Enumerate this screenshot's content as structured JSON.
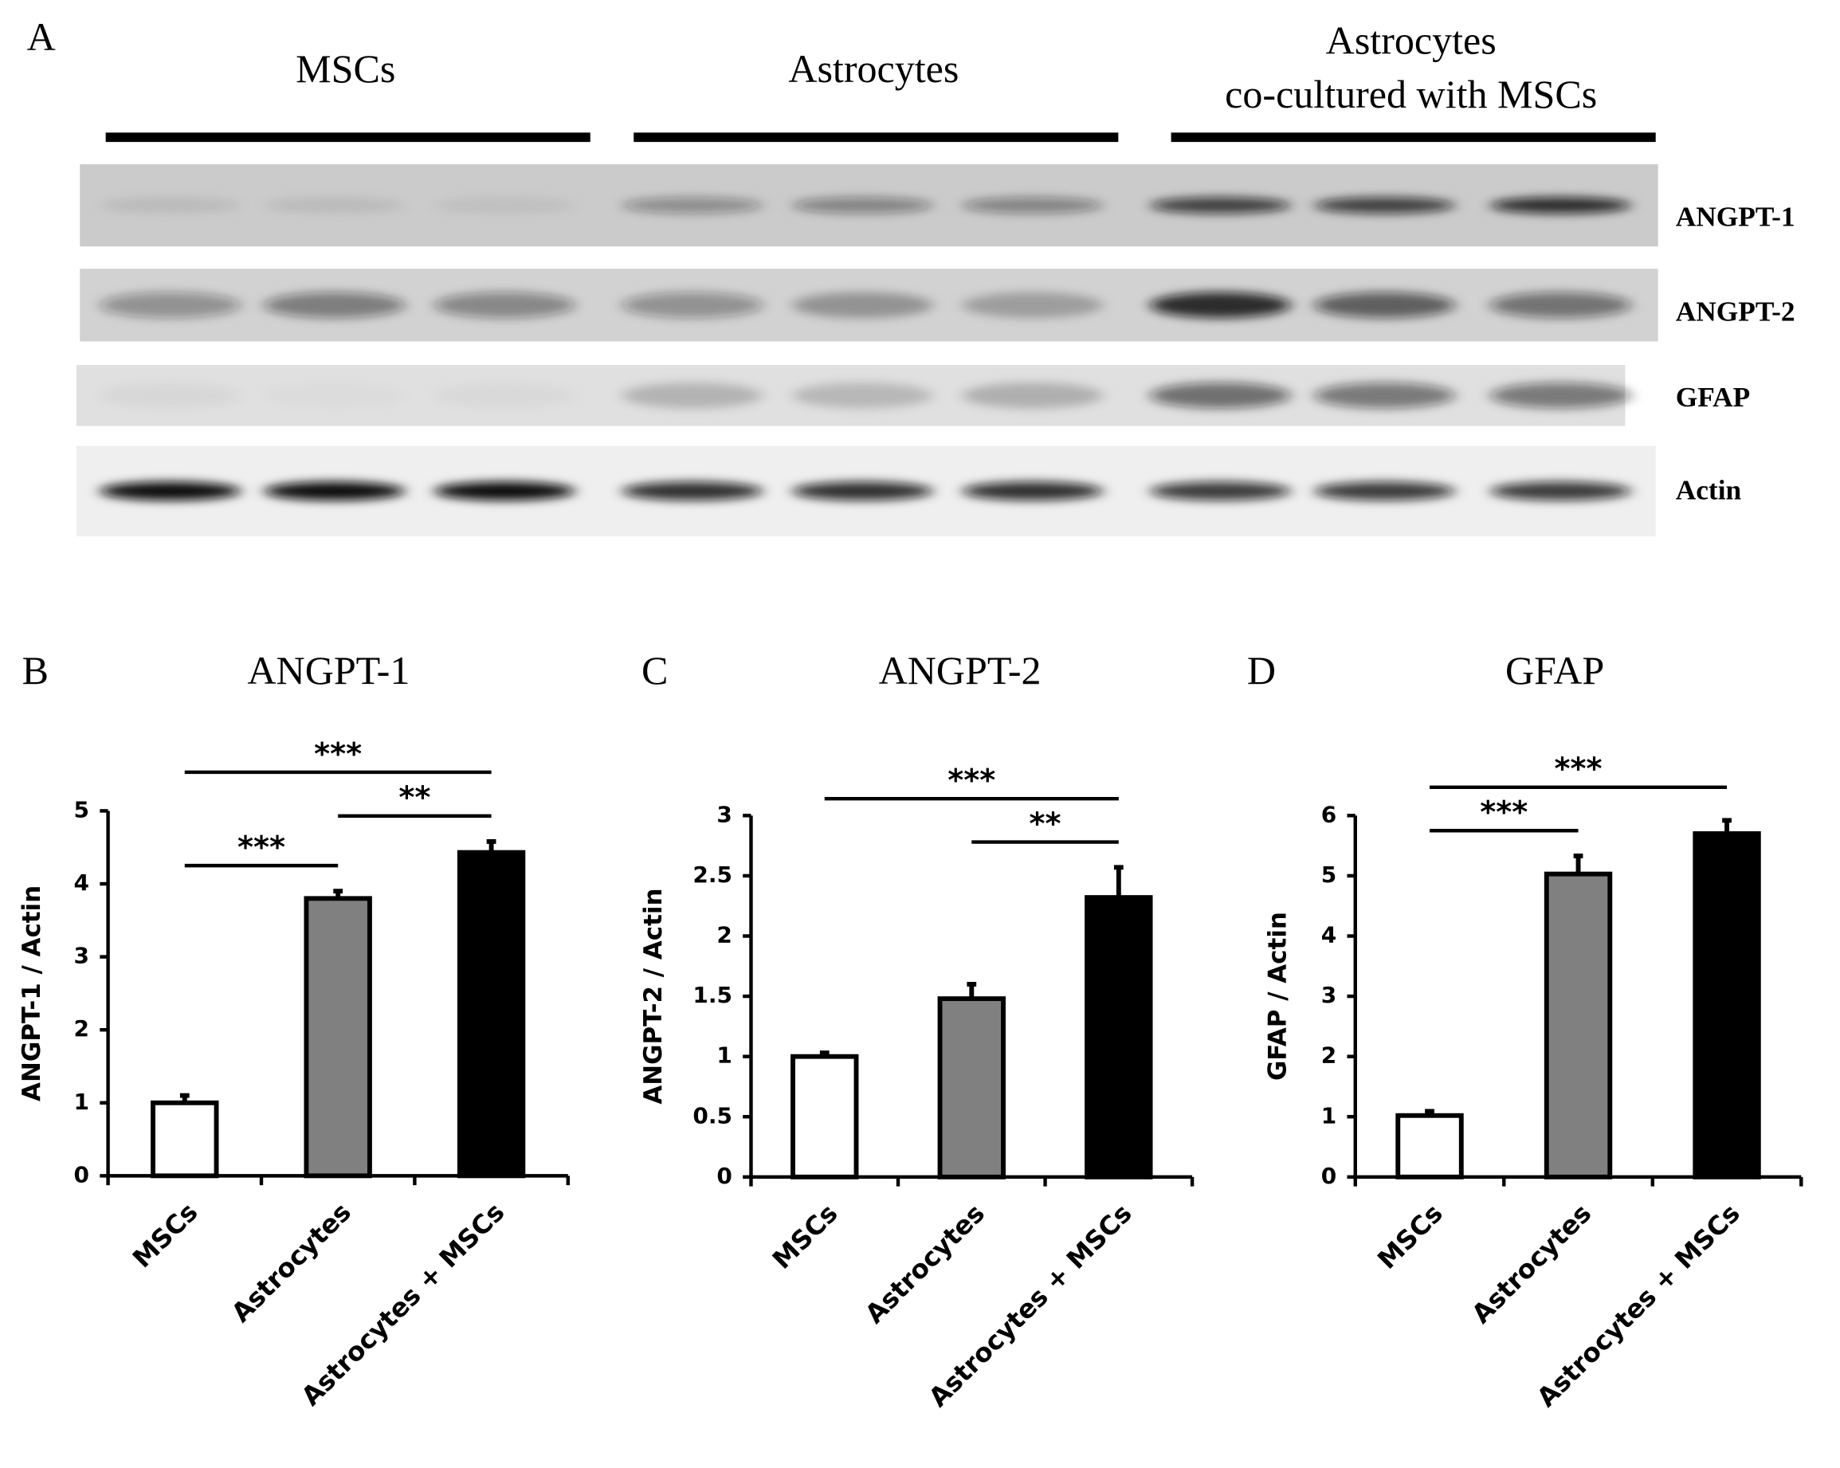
{
  "panel_a": {
    "panel_label": "A",
    "groups": [
      [
        "MSCs"
      ],
      [
        "Astrocytes"
      ],
      [
        "Astrocytes",
        "co-cultured with MSCs"
      ]
    ],
    "blots": [
      "ANGPT-1",
      "ANGPT-2",
      "GFAP",
      "Actin"
    ]
  },
  "chart_data": [
    {
      "type": "bar",
      "panel_label": "B",
      "title": "ANGPT-1",
      "ylabel": "ANGPT-1 / Actin",
      "categories": [
        "MSCs",
        "Astrocytes",
        "Astrocytes + MSCs"
      ],
      "values": [
        1.0,
        3.8,
        4.43
      ],
      "errors": [
        0.1,
        0.1,
        0.15
      ],
      "colors": [
        "#ffffff",
        "#808080",
        "#000000"
      ],
      "ylim": [
        0,
        5
      ],
      "yticks": [
        0,
        1,
        2,
        3,
        4,
        5
      ],
      "annotations": [
        {
          "text": "***",
          "between": [
            "MSCs",
            "Astrocytes"
          ]
        },
        {
          "text": "**",
          "between": [
            "Astrocytes",
            "Astrocytes + MSCs"
          ]
        },
        {
          "text": "***",
          "between": [
            "MSCs",
            "Astrocytes + MSCs"
          ]
        }
      ]
    },
    {
      "type": "bar",
      "panel_label": "C",
      "title": "ANGPT-2",
      "ylabel": "ANGPT-2 / Actin",
      "categories": [
        "MSCs",
        "Astrocytes",
        "Astrocytes + MSCs"
      ],
      "values": [
        1.0,
        1.48,
        2.32
      ],
      "errors": [
        0.03,
        0.12,
        0.25
      ],
      "colors": [
        "#ffffff",
        "#808080",
        "#000000"
      ],
      "ylim": [
        0,
        3
      ],
      "yticks": [
        0,
        0.5,
        1,
        1.5,
        2,
        2.5,
        3
      ],
      "annotations": [
        {
          "text": "**",
          "between": [
            "Astrocytes",
            "Astrocytes + MSCs"
          ]
        },
        {
          "text": "***",
          "between": [
            "MSCs",
            "Astrocytes + MSCs"
          ]
        }
      ]
    },
    {
      "type": "bar",
      "panel_label": "D",
      "title": "GFAP",
      "ylabel": "GFAP / Actin",
      "categories": [
        "MSCs",
        "Astrocytes",
        "Astrocytes + MSCs"
      ],
      "values": [
        1.02,
        5.03,
        5.7
      ],
      "errors": [
        0.07,
        0.3,
        0.22
      ],
      "colors": [
        "#ffffff",
        "#808080",
        "#000000"
      ],
      "ylim": [
        0,
        6
      ],
      "yticks": [
        0,
        1,
        2,
        3,
        4,
        5,
        6
      ],
      "annotations": [
        {
          "text": "***",
          "between": [
            "MSCs",
            "Astrocytes"
          ]
        },
        {
          "text": "***",
          "between": [
            "MSCs",
            "Astrocytes + MSCs"
          ]
        }
      ]
    }
  ]
}
